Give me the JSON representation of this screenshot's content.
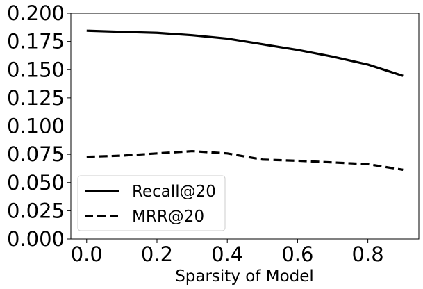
{
  "chart_data": {
    "type": "line",
    "title": "",
    "xlabel": "Sparsity of Model",
    "ylabel": "",
    "x": [
      0.0,
      0.1,
      0.2,
      0.3,
      0.4,
      0.5,
      0.6,
      0.7,
      0.8,
      0.9
    ],
    "xlim": [
      -0.045,
      0.945
    ],
    "ylim": [
      0.0,
      0.2
    ],
    "xticks": [
      0.0,
      0.2,
      0.4,
      0.6,
      0.8
    ],
    "xtick_labels": [
      "0.0",
      "0.2",
      "0.4",
      "0.6",
      "0.8"
    ],
    "yticks": [
      0.0,
      0.025,
      0.05,
      0.075,
      0.1,
      0.125,
      0.15,
      0.175,
      0.2
    ],
    "ytick_labels": [
      "0.000",
      "0.025",
      "0.050",
      "0.075",
      "0.100",
      "0.125",
      "0.150",
      "0.175",
      "0.200"
    ],
    "grid": false,
    "legend_position": "lower-left",
    "series": [
      {
        "name": "Recall@20",
        "style": "solid",
        "color": "#000000",
        "values": [
          0.1845,
          0.1835,
          0.1826,
          0.1805,
          0.1775,
          0.1725,
          0.1675,
          0.1615,
          0.1545,
          0.1445
        ]
      },
      {
        "name": "MRR@20",
        "style": "dashed",
        "color": "#000000",
        "values": [
          0.0728,
          0.0738,
          0.0758,
          0.0778,
          0.0758,
          0.0703,
          0.0693,
          0.0678,
          0.0663,
          0.0613
        ]
      }
    ]
  }
}
